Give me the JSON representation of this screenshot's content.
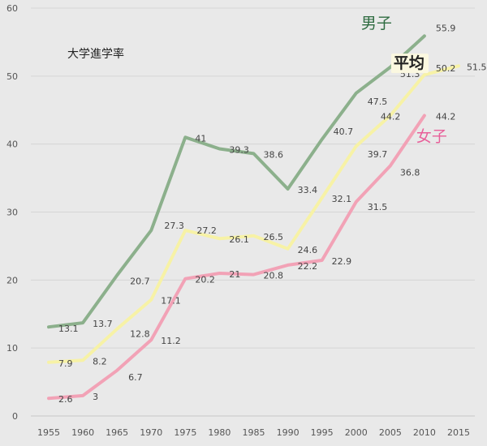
{
  "chart_data": {
    "type": "line",
    "title": "大学進学率",
    "xlabel": "",
    "ylabel": "",
    "x": [
      1955,
      1960,
      1965,
      1970,
      1975,
      1980,
      1985,
      1990,
      1995,
      2000,
      2005,
      2010,
      2015
    ],
    "ylim": [
      0,
      60
    ],
    "yticks": [
      0,
      10,
      20,
      30,
      40,
      50,
      60
    ],
    "grid": true,
    "series": [
      {
        "name": "男子",
        "color": "#8cb08c",
        "values": [
          13.1,
          13.7,
          20.7,
          27.3,
          41,
          39.3,
          38.6,
          33.4,
          40.7,
          47.5,
          51.3,
          55.9,
          null
        ],
        "labels": [
          "13.1",
          "13.7",
          "20.7",
          "",
          "41",
          "39.3",
          "38.6",
          "33.4",
          "40.7",
          "47.5",
          "51.3",
          "55.9",
          ""
        ]
      },
      {
        "name": "平均",
        "color": "#f7f2a6",
        "values": [
          7.9,
          8.2,
          12.8,
          17.1,
          27.3,
          26.1,
          26.5,
          24.6,
          32.1,
          39.7,
          44.2,
          50.2,
          51.5
        ],
        "labels": [
          "7.9",
          "8.2",
          "12.8",
          "17.1",
          "27.3",
          "26.1",
          "26.5",
          "24.6",
          "32.1",
          "39.7",
          "44.2",
          "50.2",
          "51.5"
        ]
      },
      {
        "name": "女子",
        "color": "#f2a2b6",
        "values": [
          2.6,
          3,
          6.7,
          11.2,
          20.2,
          21,
          20.8,
          22.2,
          22.9,
          31.5,
          36.8,
          44.2,
          null
        ],
        "labels": [
          "2.6",
          "3",
          "6.7",
          "11.2",
          "20.2",
          "21",
          "20.8",
          "22.2",
          "22.9",
          "31.5",
          "36.8",
          "44.2",
          ""
        ]
      }
    ],
    "extra_labels": [
      "27.2"
    ],
    "series_name_colors": {
      "男子": "#2e6b40",
      "平均": "#222222",
      "女子": "#e8609a"
    }
  }
}
